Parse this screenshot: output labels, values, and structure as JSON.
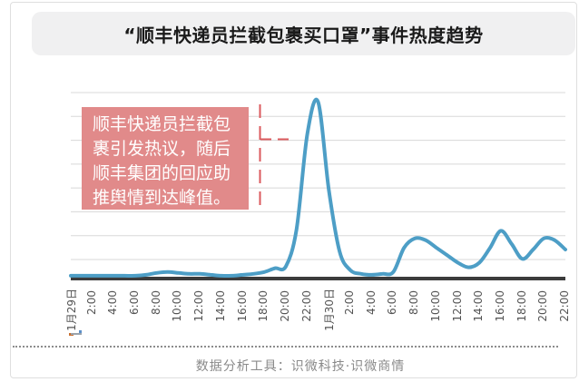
{
  "header": {
    "title": "“顺丰快递员拦截包裹买口罩”事件热度趋势"
  },
  "annotation": {
    "text": "顺丰快递员拦截包裹引发热议，随后顺丰集团的回应助推舆情到达峰值。",
    "box_color": "#e18a8a",
    "text_color": "#ffffff",
    "connector_color": "#db5a5e"
  },
  "footer": {
    "text": "数据分析工具：识微科技·识微商情"
  },
  "chart_data": {
    "type": "line",
    "title": "“顺丰快递员拦截包裹买口罩”事件热度趋势",
    "x_labels": [
      "1月29日",
      "2:00",
      "4:00",
      "6:00",
      "8:00",
      "10:00",
      "12:00",
      "14:00",
      "16:00",
      "18:00",
      "20:00",
      "22:00",
      "1月30日",
      "2:00",
      "4:00",
      "6:00",
      "8:00",
      "10:00",
      "12:00",
      "14:00",
      "16:00",
      "18:00",
      "20:00",
      "22:00"
    ],
    "x_start": "1月29日 0:00",
    "x_end": "1月30日 22:00",
    "hours_per_point": 1,
    "series": [
      {
        "name": "事件热度",
        "color": "#4d9ec6",
        "values": [
          2,
          2,
          2,
          2,
          2,
          2,
          2,
          2.5,
          3.5,
          4,
          3.5,
          3,
          3,
          2.5,
          2,
          2,
          2.5,
          3,
          4,
          6,
          7,
          27,
          78,
          95,
          48,
          15,
          5,
          3,
          2.5,
          3,
          4,
          17,
          22,
          21,
          17,
          13,
          9,
          6.5,
          9,
          17,
          26,
          19,
          11,
          16,
          22,
          21,
          16
        ]
      }
    ],
    "ylim": [
      0,
      100
    ],
    "y_axis_labels_shown": false,
    "grid": {
      "horizontal_lines": 8,
      "color": "#d8d8d8"
    },
    "axis_line_color": "#3c3c3c",
    "label_color": "#545454",
    "legend_position": "none"
  },
  "decor": {
    "mini_mark_colors": [
      "#c96f2f",
      "#9aa3ab",
      "#5b8fc9"
    ]
  }
}
